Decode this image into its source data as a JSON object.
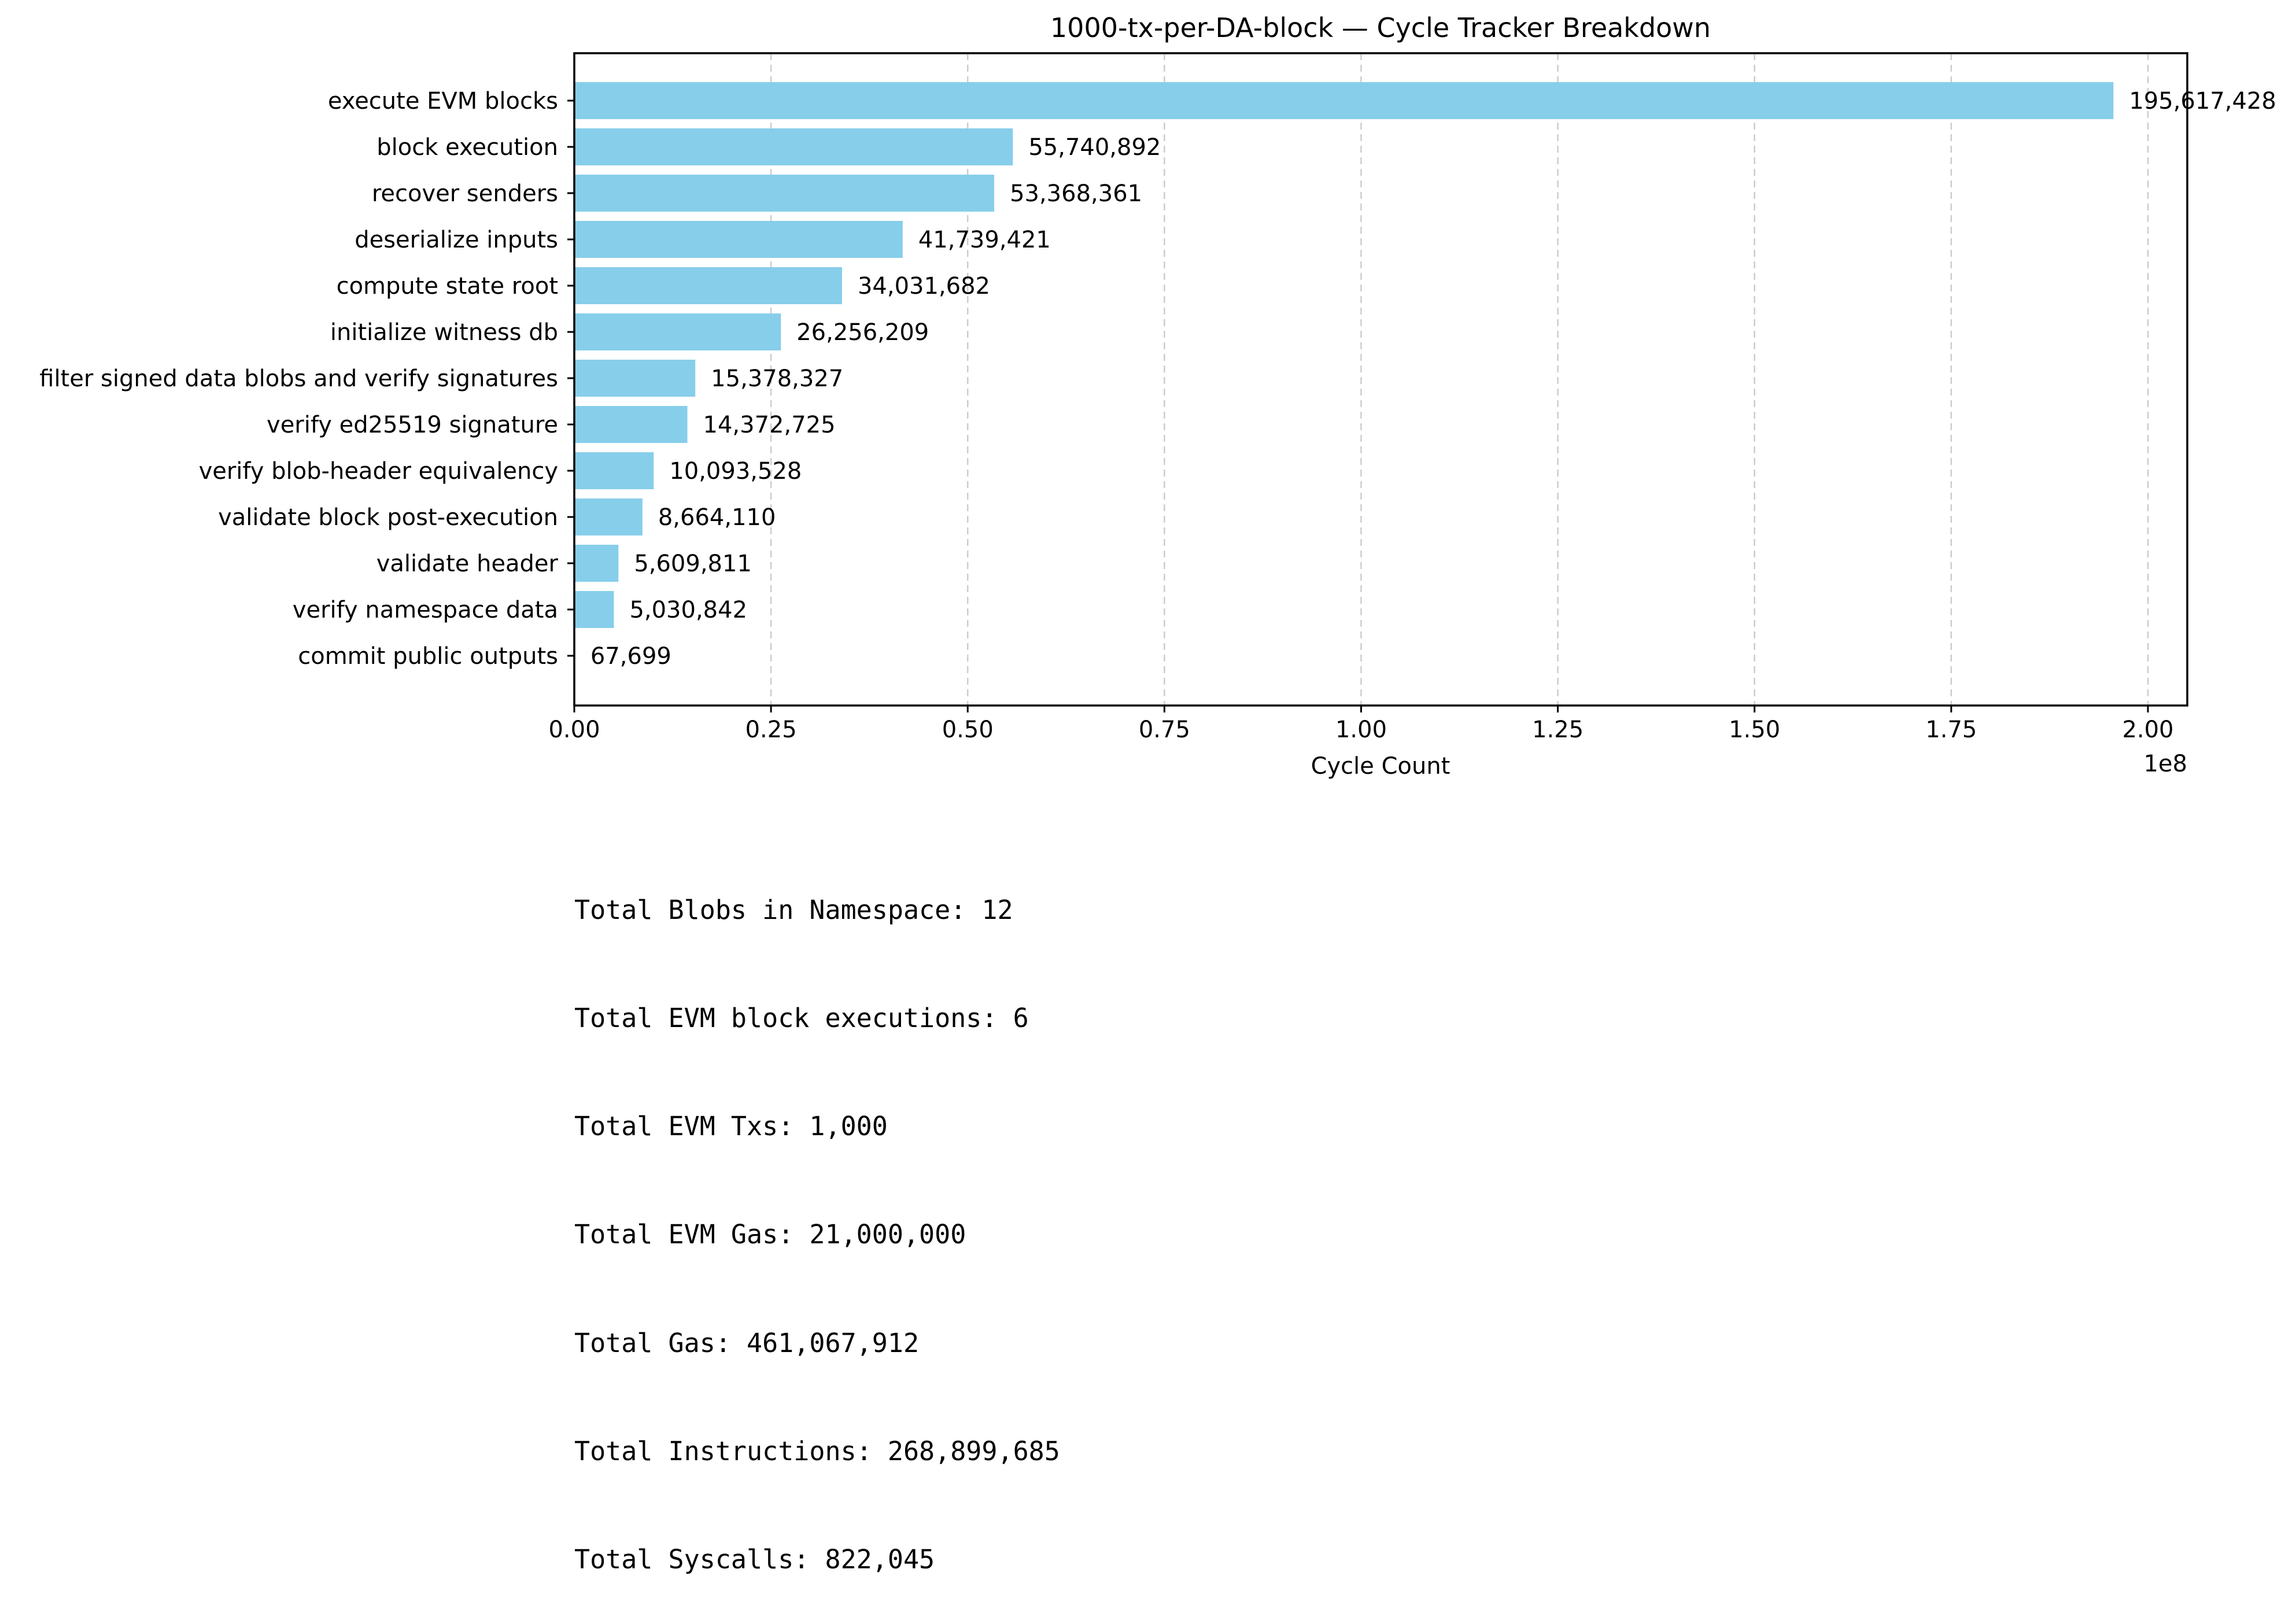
{
  "chart_data": {
    "type": "bar",
    "orientation": "horizontal",
    "title": "1000-tx-per-DA-block — Cycle Tracker Breakdown",
    "xlabel": "Cycle Count",
    "ylabel": "",
    "axis_offset_label": "1e8",
    "xlim": [
      0,
      205000000
    ],
    "x_ticks": [
      0,
      25000000,
      50000000,
      75000000,
      100000000,
      125000000,
      150000000,
      175000000,
      200000000
    ],
    "x_tick_labels": [
      "0.00",
      "0.25",
      "0.50",
      "0.75",
      "1.00",
      "1.25",
      "1.50",
      "1.75",
      "2.00"
    ],
    "grid": "x-dashed",
    "bar_color": "#87ceeb",
    "categories": [
      "execute EVM blocks",
      "block execution",
      "recover senders",
      "deserialize inputs",
      "compute state root",
      "initialize witness db",
      "filter signed data blobs and verify signatures",
      "verify ed25519 signature",
      "verify blob-header equivalency",
      "validate block post-execution",
      "validate header",
      "verify namespace data",
      "commit public outputs"
    ],
    "values": [
      195617428,
      55740892,
      53368361,
      41739421,
      34031682,
      26256209,
      15378327,
      14372725,
      10093528,
      8664110,
      5609811,
      5030842,
      67699
    ],
    "value_labels": [
      "195,617,428",
      "55,740,892",
      "53,368,361",
      "41,739,421",
      "34,031,682",
      "26,256,209",
      "15,378,327",
      "14,372,725",
      "10,093,528",
      "8,664,110",
      "5,609,811",
      "5,030,842",
      "67,699"
    ]
  },
  "summary": [
    "Total Blobs in Namespace: 12",
    "Total EVM block executions: 6",
    "Total EVM Txs: 1,000",
    "Total EVM Gas: 21,000,000",
    "Total Gas: 461,067,912",
    "Total Instructions: 268,899,685",
    "Total Syscalls: 822,045"
  ]
}
